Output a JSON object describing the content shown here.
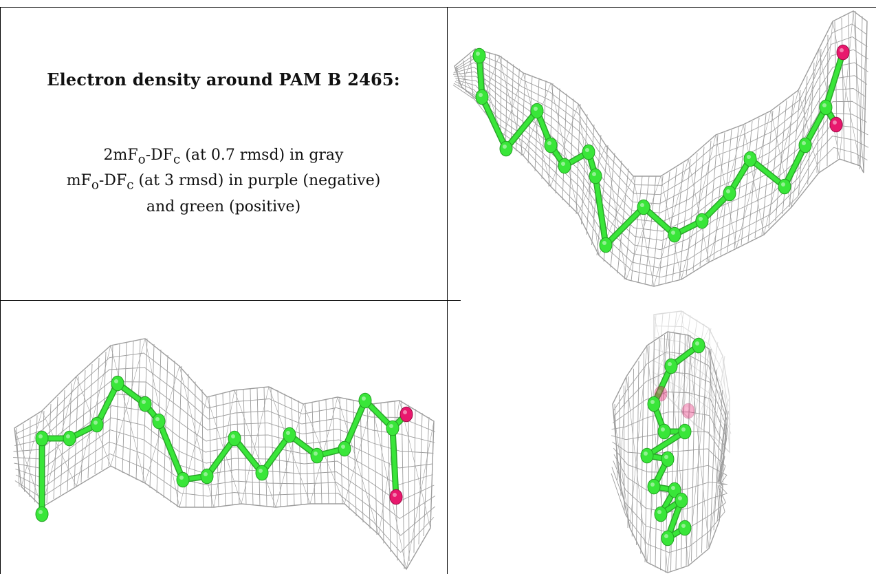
{
  "title": "Electron density around PAM B 2465:",
  "legend": {
    "line1": {
      "pre": "2mF",
      "sub1": "o",
      "mid": "-DF",
      "sub2": "c",
      "post": " (at 0.7 rmsd) in gray"
    },
    "line2": {
      "pre": "mF",
      "sub1": "o",
      "mid": "-DF",
      "sub2": "c",
      "post": " (at 3 rmsd) in purple (negative)"
    },
    "line3": "and green (positive)"
  },
  "colors": {
    "mesh": "#8c8c8c",
    "carbon": "#39e639",
    "oxygen": "#e8186d",
    "border": "#000000"
  }
}
